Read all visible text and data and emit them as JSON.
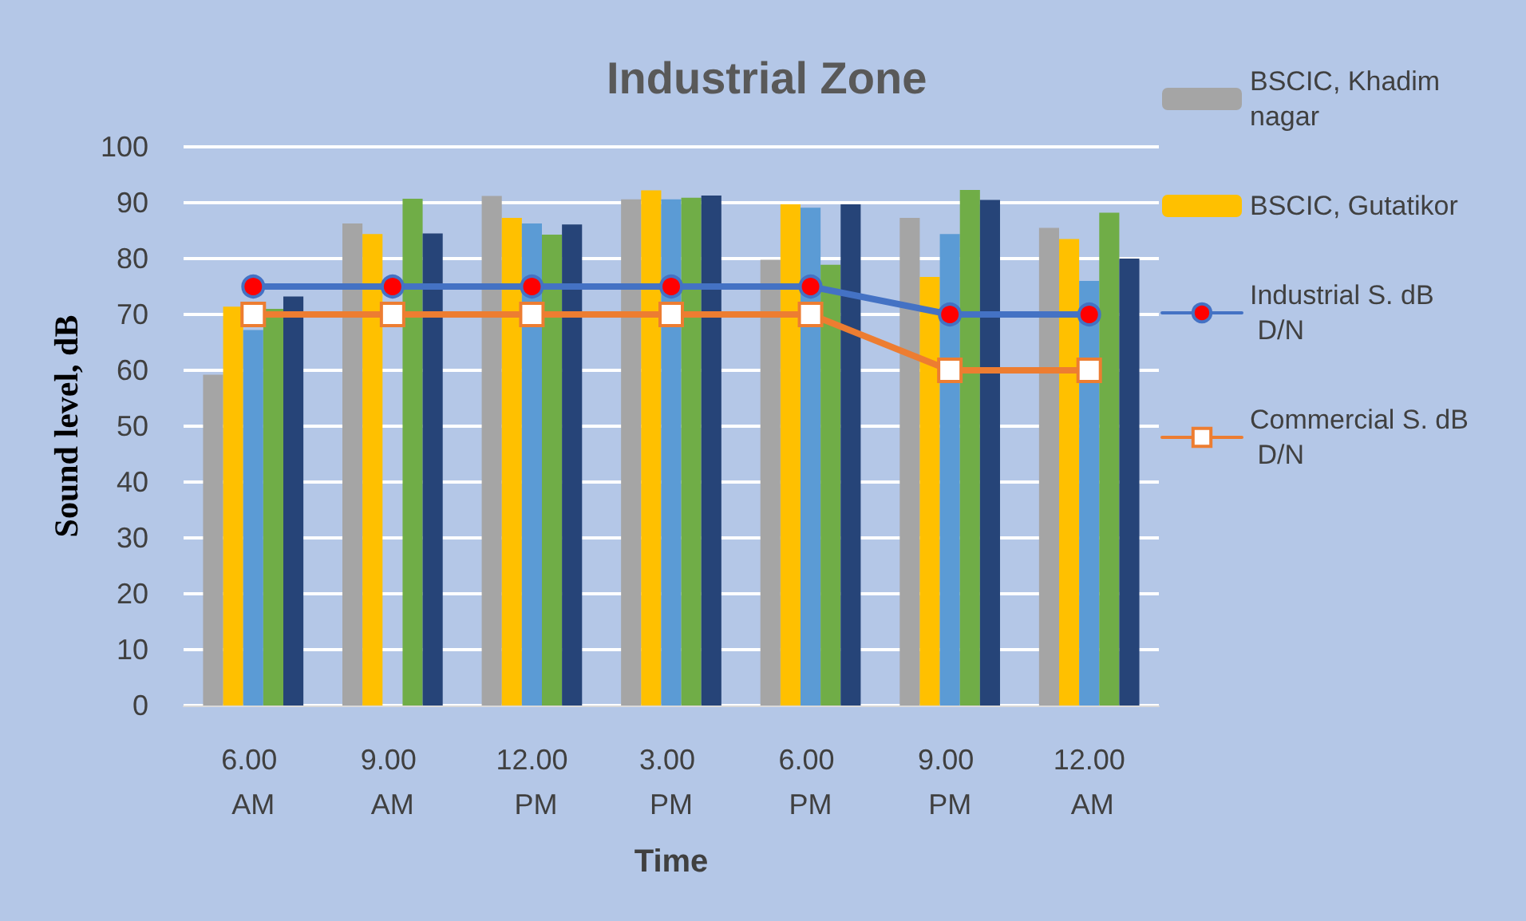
{
  "chart_data": {
    "type": "bar",
    "title": "Industrial Zone",
    "xlabel": "Time",
    "ylabel": "Sound level, dB",
    "categories": [
      "6.00 AM",
      "9.00 AM",
      "12.00 PM",
      "3.00 PM",
      "6.00 PM",
      "9.00 PM",
      "12.00 AM"
    ],
    "series": [
      {
        "name": "BSCIC, Khadim nagar",
        "color": "#a5a5a5",
        "values": [
          59.2,
          86.3,
          91.2,
          90.6,
          79.8,
          87.3,
          85.5
        ]
      },
      {
        "name": "BSCIC, Gutatikor",
        "color": "#ffc000",
        "values": [
          71.4,
          84.4,
          87.3,
          92.2,
          89.7,
          76.7,
          83.5
        ]
      },
      {
        "color": "#5b9bd5",
        "values": [
          67.2,
          null,
          86.3,
          90.6,
          89.1,
          84.4,
          76
        ]
      },
      {
        "color": "#70ad47",
        "values": [
          71,
          90.7,
          84.3,
          90.9,
          78.9,
          92.3,
          88.2
        ]
      },
      {
        "color": "#264478",
        "values": [
          73.2,
          84.5,
          86.1,
          91.3,
          89.7,
          90.5,
          80
        ]
      },
      {
        "name": "Industrial S. dB D/N",
        "type": "line",
        "marker": "circle",
        "color": "#4472c4",
        "values": [
          75,
          75,
          75,
          75,
          75,
          70,
          70
        ]
      },
      {
        "name": "Commercial S. dB D/N",
        "type": "line",
        "marker": "square",
        "color": "#ed7d31",
        "values": [
          70,
          70,
          70,
          70,
          70,
          60,
          60
        ]
      }
    ],
    "ylim": [
      0,
      100
    ],
    "yticks": [
      0,
      10,
      20,
      30,
      40,
      50,
      60,
      70,
      80,
      90,
      100
    ],
    "grid": "y",
    "legend": "right"
  }
}
